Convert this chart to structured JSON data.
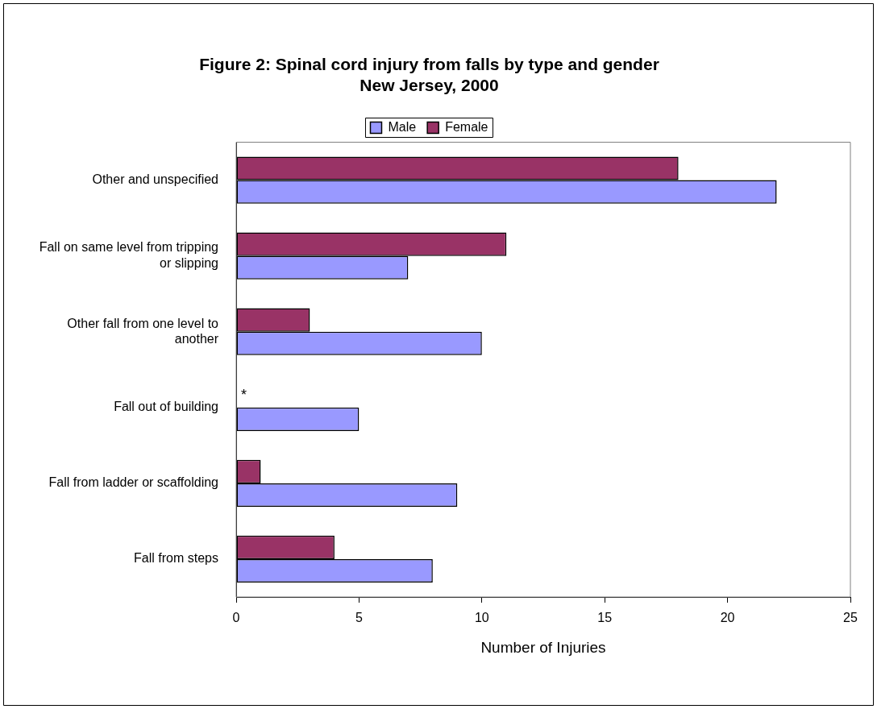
{
  "chart_data": {
    "type": "bar",
    "orientation": "horizontal",
    "title": "Figure 2: Spinal cord injury from falls by type and gender",
    "subtitle": "New Jersey, 2000",
    "xlabel": "Number of Injuries",
    "categories": [
      "Other and unspecified",
      "Fall on same level from tripping or slipping",
      "Other fall from one level to another",
      "Fall out of building",
      "Fall from ladder or scaffolding",
      "Fall from steps"
    ],
    "series": [
      {
        "name": "Male",
        "color": "#9999ff",
        "values": [
          22,
          7,
          10,
          5,
          9,
          8
        ]
      },
      {
        "name": "Female",
        "color": "#993366",
        "values": [
          18,
          11,
          3,
          null,
          1,
          4
        ]
      }
    ],
    "xlim": [
      0,
      25
    ],
    "xticks": [
      0,
      5,
      10,
      15,
      20,
      25
    ],
    "grid": false,
    "legend": "top",
    "annotations": [
      {
        "text": "*",
        "x": 0,
        "y": "Fall out of building"
      }
    ]
  }
}
